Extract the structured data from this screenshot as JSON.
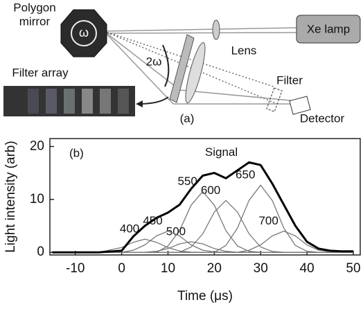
{
  "diagram": {
    "polygon_mirror": [
      "Polygon",
      "mirror"
    ],
    "omega": "ω",
    "two_omega": "2ω",
    "lamp": "Xe lamp",
    "lens": "Lens",
    "filter": "Filter",
    "detector": "Detector",
    "filter_array": "Filter array",
    "panel": "(a)"
  },
  "chart_data": {
    "type": "line",
    "annotation": "(b)",
    "xlabel": "Time (μs)",
    "ylabel": "Light intensity (arb)",
    "x": [
      -15,
      -5,
      0,
      2.5,
      5,
      7.5,
      10,
      12.5,
      15,
      17.5,
      20,
      22.5,
      25,
      27.5,
      30,
      32.5,
      35,
      37.5,
      40,
      42.5,
      45,
      47.5,
      50
    ],
    "series": [
      {
        "name": "Signal",
        "color": "#000000",
        "values": [
          0,
          0,
          0.3,
          3,
          5,
          6.5,
          7.5,
          9,
          12,
          14.5,
          15,
          14,
          15.5,
          17,
          16.5,
          13,
          9,
          5,
          2,
          0.7,
          0.3,
          0.2,
          0.2
        ]
      },
      {
        "name": "400",
        "color": "#777777",
        "values": [
          0,
          0,
          0.9,
          1.9,
          2.5,
          1.9,
          0.9,
          0.25,
          0.04,
          0,
          0,
          0,
          0,
          0,
          0,
          0,
          0,
          0,
          0,
          0,
          0,
          0,
          0
        ]
      },
      {
        "name": "450",
        "color": "#777777",
        "values": [
          0,
          0,
          0,
          0.4,
          1.4,
          3.1,
          4,
          3.1,
          1.4,
          0.4,
          0.07,
          0,
          0,
          0,
          0,
          0,
          0,
          0,
          0,
          0,
          0,
          0,
          0
        ]
      },
      {
        "name": "500",
        "color": "#777777",
        "values": [
          0,
          0,
          0,
          0,
          0,
          0.2,
          0.7,
          1.6,
          2,
          1.6,
          0.7,
          0.2,
          0,
          0,
          0,
          0,
          0,
          0,
          0,
          0,
          0,
          0,
          0
        ]
      },
      {
        "name": "550",
        "color": "#777777",
        "values": [
          0,
          0,
          0,
          0,
          0,
          0,
          1.2,
          4.1,
          8.9,
          11.5,
          8.9,
          4.1,
          1.2,
          0.2,
          0,
          0,
          0,
          0,
          0,
          0,
          0,
          0,
          0
        ]
      },
      {
        "name": "600",
        "color": "#777777",
        "values": [
          0,
          0,
          0,
          0,
          0,
          0,
          0,
          0,
          1,
          3.5,
          7.6,
          9.8,
          7.6,
          3.5,
          1,
          0.17,
          0,
          0,
          0,
          0,
          0,
          0,
          0
        ]
      },
      {
        "name": "650",
        "color": "#777777",
        "values": [
          0,
          0,
          0,
          0,
          0,
          0,
          0,
          0,
          0,
          0,
          0,
          1.3,
          4.6,
          9.8,
          12.7,
          9.8,
          4.6,
          1.3,
          0.2,
          0,
          0,
          0,
          0
        ]
      },
      {
        "name": "700",
        "color": "#777777",
        "values": [
          0,
          0,
          0,
          0,
          0,
          0,
          0,
          0,
          0,
          0,
          0,
          0,
          0,
          0.4,
          1.4,
          3.1,
          4,
          3.1,
          1.4,
          0.4,
          0.07,
          0,
          0
        ]
      }
    ],
    "xlim": [
      -15.5,
      51.5
    ],
    "ylim": [
      -0.5,
      21.5
    ],
    "xticks": [
      -10,
      0,
      10,
      20,
      30,
      40,
      50
    ],
    "yticks": [
      0,
      10,
      20
    ]
  }
}
